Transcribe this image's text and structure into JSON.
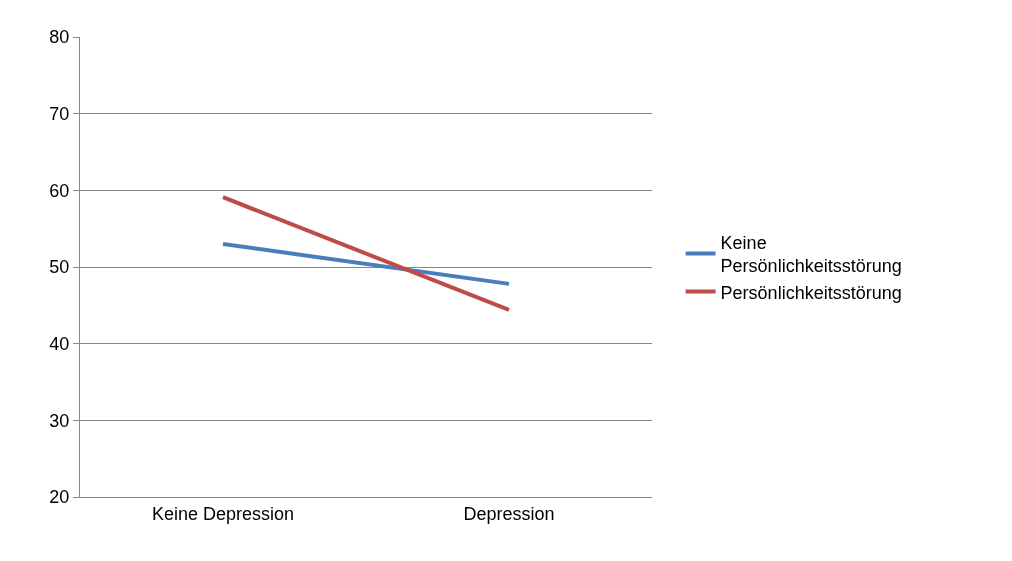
{
  "chart_data": {
    "type": "line",
    "categories": [
      "Keine Depression",
      "Depression"
    ],
    "series": [
      {
        "name": "Keine Persönlichkeitsstörung",
        "color": "#4a7ebb",
        "values": [
          53.0,
          47.8
        ]
      },
      {
        "name": "Persönlichkeitsstörung",
        "color": "#be4b48",
        "values": [
          59.1,
          44.4
        ]
      }
    ],
    "ylim": [
      20,
      80
    ],
    "yticks": [
      20,
      30,
      40,
      50,
      60,
      70,
      80
    ],
    "grid": "y",
    "legend": "right",
    "marker": "none",
    "line_style": "solid"
  }
}
